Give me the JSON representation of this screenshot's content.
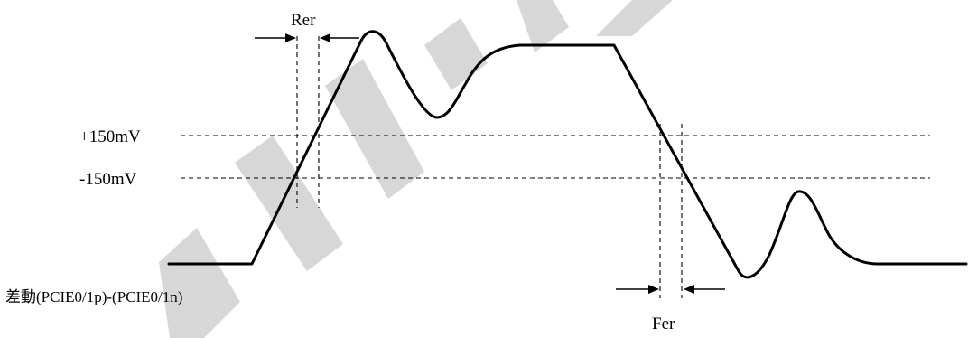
{
  "levels": {
    "upper_label": "+150mV",
    "lower_label": "-150mV"
  },
  "timing": {
    "rise_label": "Rer",
    "fall_label": "Fer"
  },
  "signal": {
    "caption": "差動(PCIE0/1p)-(PCIE0/1n)"
  },
  "colors": {
    "line": "#000000",
    "background": "#ffffff",
    "watermark": "#d0d0d0"
  }
}
